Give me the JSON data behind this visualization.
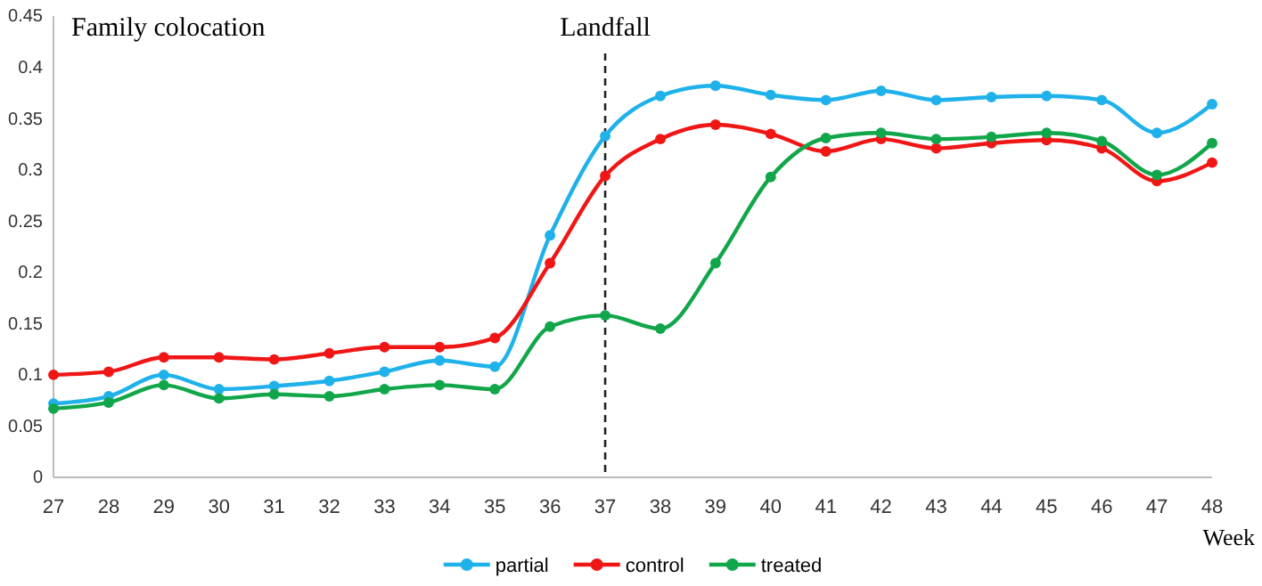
{
  "chart_data": {
    "type": "line",
    "xlabel": "Week",
    "x": [
      27,
      28,
      29,
      30,
      31,
      32,
      33,
      34,
      35,
      36,
      37,
      38,
      39,
      40,
      41,
      42,
      43,
      44,
      45,
      46,
      47,
      48
    ],
    "xlim": [
      27,
      48
    ],
    "xticks": [
      27,
      28,
      29,
      30,
      31,
      32,
      33,
      34,
      35,
      36,
      37,
      38,
      39,
      40,
      41,
      42,
      43,
      44,
      45,
      46,
      47,
      48
    ],
    "ylim": [
      0,
      0.45
    ],
    "yticks": [
      0,
      0.05,
      0.1,
      0.15,
      0.2,
      0.25,
      0.3,
      0.35,
      0.4,
      0.45
    ],
    "series": [
      {
        "name": "partial",
        "color": "#1fb1ea",
        "values": [
          0.072,
          0.079,
          0.1,
          0.086,
          0.089,
          0.094,
          0.103,
          0.114,
          0.108,
          0.236,
          0.333,
          0.372,
          0.382,
          0.373,
          0.368,
          0.377,
          0.368,
          0.371,
          0.372,
          0.368,
          0.336,
          0.364
        ]
      },
      {
        "name": "control",
        "color": "#f01616",
        "values": [
          0.1,
          0.103,
          0.117,
          0.117,
          0.115,
          0.121,
          0.127,
          0.127,
          0.136,
          0.209,
          0.294,
          0.33,
          0.344,
          0.335,
          0.318,
          0.33,
          0.321,
          0.326,
          0.329,
          0.321,
          0.289,
          0.307
        ]
      },
      {
        "name": "treated",
        "color": "#12a64a",
        "values": [
          0.067,
          0.073,
          0.09,
          0.077,
          0.081,
          0.079,
          0.086,
          0.09,
          0.086,
          0.147,
          0.158,
          0.145,
          0.209,
          0.293,
          0.331,
          0.336,
          0.33,
          0.332,
          0.336,
          0.328,
          0.295,
          0.326
        ]
      }
    ],
    "ref_lines": [
      {
        "axis": "x",
        "value": 37,
        "label": "Landfall",
        "color": "#222222",
        "line_style": "dashed"
      }
    ],
    "annotations": [
      "Family colocation"
    ],
    "marker": "circle",
    "line_style": "solid",
    "grid": false,
    "legend": "bottom"
  }
}
